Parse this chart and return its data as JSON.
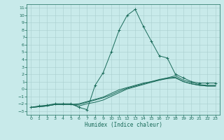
{
  "title": "",
  "xlabel": "Humidex (Indice chaleur)",
  "bg_color": "#c8eaea",
  "grid_color": "#a8cece",
  "line_color": "#1a6b5a",
  "xlim": [
    -0.5,
    23.5
  ],
  "ylim": [
    -3.5,
    11.5
  ],
  "xticks": [
    0,
    1,
    2,
    3,
    4,
    5,
    6,
    7,
    8,
    9,
    10,
    11,
    12,
    13,
    14,
    15,
    16,
    17,
    18,
    19,
    20,
    21,
    22,
    23
  ],
  "yticks": [
    -3,
    -2,
    -1,
    0,
    1,
    2,
    3,
    4,
    5,
    6,
    7,
    8,
    9,
    10,
    11
  ],
  "lines": [
    {
      "x": [
        0,
        1,
        2,
        3,
        4,
        5,
        6,
        7,
        8,
        9,
        10,
        11,
        12,
        13,
        14,
        15,
        16,
        17,
        18,
        19,
        20,
        21,
        22,
        23
      ],
      "y": [
        -2.5,
        -2.3,
        -2.2,
        -2.0,
        -2.0,
        -2.0,
        -2.5,
        -2.8,
        0.5,
        2.2,
        5.0,
        8.0,
        10.0,
        10.8,
        8.5,
        6.5,
        4.5,
        4.2,
        2.0,
        1.5,
        1.0,
        0.8,
        0.8,
        0.8
      ],
      "marker": true
    },
    {
      "x": [
        0,
        1,
        2,
        3,
        4,
        5,
        6,
        7,
        8,
        9,
        10,
        11,
        12,
        13,
        14,
        15,
        16,
        17,
        18,
        19,
        20,
        21,
        22,
        23
      ],
      "y": [
        -2.5,
        -2.4,
        -2.3,
        -2.1,
        -2.1,
        -2.1,
        -2.3,
        -2.0,
        -1.8,
        -1.5,
        -1.0,
        -0.5,
        0.0,
        0.3,
        0.6,
        0.9,
        1.2,
        1.5,
        1.8,
        1.2,
        0.9,
        0.6,
        0.5,
        0.5
      ],
      "marker": false
    },
    {
      "x": [
        0,
        1,
        2,
        3,
        4,
        5,
        6,
        7,
        8,
        9,
        10,
        11,
        12,
        13,
        14,
        15,
        16,
        17,
        18,
        19,
        20,
        21,
        22,
        23
      ],
      "y": [
        -2.5,
        -2.4,
        -2.3,
        -2.1,
        -2.1,
        -2.1,
        -2.1,
        -1.8,
        -1.5,
        -1.2,
        -0.8,
        -0.3,
        0.1,
        0.4,
        0.7,
        1.0,
        1.3,
        1.5,
        1.6,
        1.0,
        0.7,
        0.5,
        0.4,
        0.4
      ],
      "marker": false
    },
    {
      "x": [
        0,
        1,
        2,
        3,
        4,
        5,
        6,
        7,
        8,
        9,
        10,
        11,
        12,
        13,
        14,
        15,
        16,
        17,
        18,
        19,
        20,
        21,
        22,
        23
      ],
      "y": [
        -2.5,
        -2.4,
        -2.3,
        -2.1,
        -2.1,
        -2.1,
        -2.0,
        -1.7,
        -1.4,
        -1.1,
        -0.6,
        -0.1,
        0.2,
        0.5,
        0.8,
        1.0,
        1.2,
        1.4,
        1.5,
        1.0,
        0.7,
        0.5,
        0.4,
        0.4
      ],
      "marker": false
    }
  ]
}
